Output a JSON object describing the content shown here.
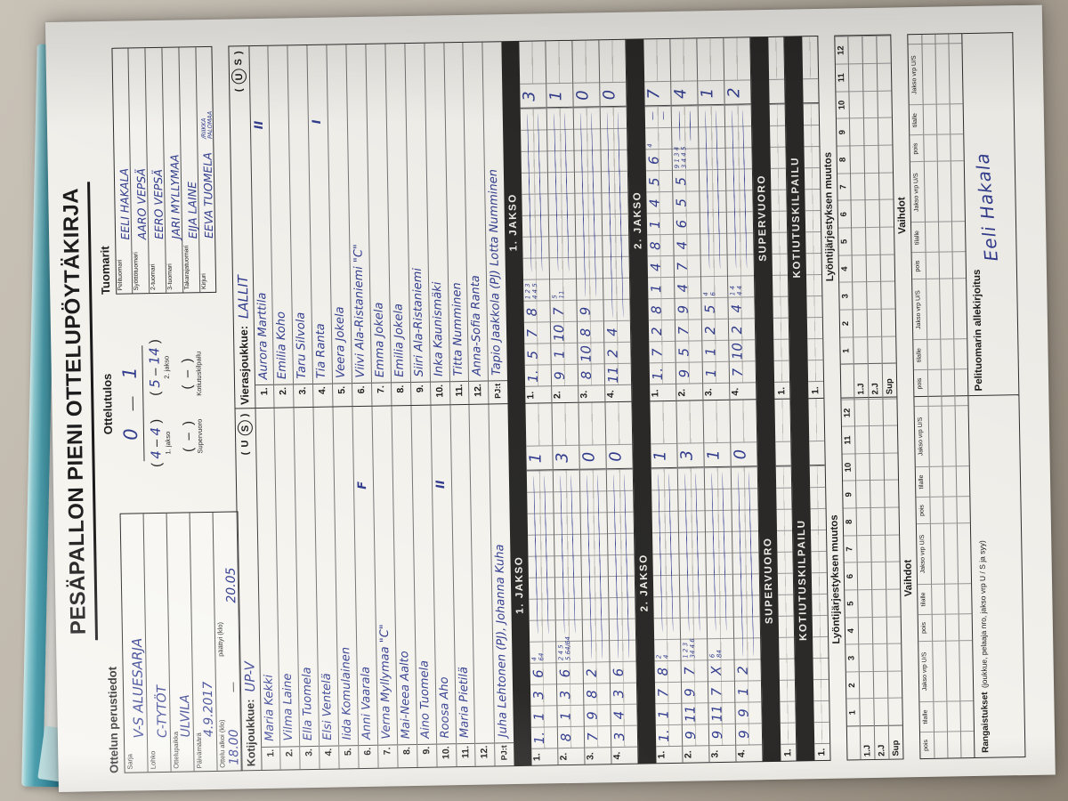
{
  "title": "PESÄPALLON PIENI OTTELUPÖYTÄKIRJA",
  "perustiedot": {
    "header": "Ottelun perustiedot",
    "fields": [
      {
        "label": "Sarja",
        "value": "V-S ALUESARJA"
      },
      {
        "label": "Lohko",
        "value": "C-TYTÖT"
      },
      {
        "label": "Ottelupaikka",
        "value": "ULVILA"
      },
      {
        "label": "Päivämäärä",
        "value": "4.9.2017"
      }
    ],
    "time_row": {
      "label": "Ottelu alkoi (klo)",
      "value": "18.00",
      "dash": "—",
      "label2": "päättyi (klo)",
      "value2": "20.05"
    }
  },
  "ottelutulos": {
    "header": "Ottelutulos",
    "final_home": "0",
    "final_dash": "—",
    "final_away": "1",
    "periods": [
      {
        "home": "4",
        "away": "4",
        "label": "1. jakso"
      },
      {
        "home": "5",
        "away": "14",
        "label": "2. jakso"
      },
      {
        "home": "",
        "away": "",
        "label": "Supervuoro"
      },
      {
        "home": "",
        "away": "",
        "label": "Kotiutuskilpailu"
      }
    ]
  },
  "tuomarit": {
    "header": "Tuomarit",
    "fields": [
      {
        "label": "Pelituomari",
        "value": "EELI HAKALA"
      },
      {
        "label": "Syöttötuomari",
        "value": "AARO VEPSÄ"
      },
      {
        "label": "2-tuomari",
        "value": "EERO VEPSÄ"
      },
      {
        "label": "3-tuomari",
        "value": "JARI MYLLYMAA"
      },
      {
        "label": "Takarajatuomari",
        "value": "EIJA LAINE"
      },
      {
        "label": "Kirjuri",
        "value": "EEVA TUOMELA",
        "extra_top": "/RIIKKA",
        "extra_bottom": "PALOMAA"
      }
    ]
  },
  "roster": {
    "home": {
      "label": "Kotijoukkue:",
      "team": "UP-V",
      "us_left": "U",
      "us_right": "S",
      "circled": "S",
      "players": [
        {
          "num": "1.",
          "name": "Maria Kekki",
          "mark": ""
        },
        {
          "num": "2.",
          "name": "Vilma Laine",
          "mark": ""
        },
        {
          "num": "3.",
          "name": "Ella Tuomela",
          "mark": ""
        },
        {
          "num": "4.",
          "name": "Elsi Ventelä",
          "mark": ""
        },
        {
          "num": "5.",
          "name": "Iida Komulainen",
          "mark": ""
        },
        {
          "num": "6.",
          "name": "Anni Vaarala",
          "mark": "F"
        },
        {
          "num": "7.",
          "name": "Verna Myllymaa \"C\"",
          "mark": ""
        },
        {
          "num": "8.",
          "name": "Mai-Neea Aalto",
          "mark": ""
        },
        {
          "num": "9.",
          "name": "Aino Tuomela",
          "mark": ""
        },
        {
          "num": "10.",
          "name": "Roosa Aho",
          "mark": "II"
        },
        {
          "num": "11.",
          "name": "Maria Pietilä",
          "mark": ""
        },
        {
          "num": "12.",
          "name": "",
          "mark": ""
        }
      ],
      "pjt_label": "PJ:t",
      "pjt": "Juha Lehtonen (PJ), Johanna Kuha"
    },
    "away": {
      "label": "Vierasjoukkue:",
      "team": "LALLIT",
      "us_left": "U",
      "us_right": "S",
      "circled": "U",
      "players": [
        {
          "num": "1.",
          "name": "Aurora Marttila",
          "mark": "II"
        },
        {
          "num": "2.",
          "name": "Emilia Koho",
          "mark": ""
        },
        {
          "num": "3.",
          "name": "Taru Silvola",
          "mark": ""
        },
        {
          "num": "4.",
          "name": "Tia Ranta",
          "mark": "I"
        },
        {
          "num": "5.",
          "name": "Veera Jokela",
          "mark": ""
        },
        {
          "num": "6.",
          "name": "Viivi Ala-Ristaniemi \"C\"",
          "mark": ""
        },
        {
          "num": "7.",
          "name": "Emma Jokela",
          "mark": ""
        },
        {
          "num": "8.",
          "name": "Emilia Jokela",
          "mark": ""
        },
        {
          "num": "9.",
          "name": "Siiri Ala-Ristaniemi",
          "mark": ""
        },
        {
          "num": "10.",
          "name": "Inka Kaunismäki",
          "mark": ""
        },
        {
          "num": "11.",
          "name": "Titta Numminen",
          "mark": ""
        },
        {
          "num": "12.",
          "name": "Anna-Sofia Ranta",
          "mark": ""
        }
      ],
      "pjt_label": "PJ:t",
      "pjt": "Tapio Jaakkola (PJ) Lotta Numminen"
    }
  },
  "jakso1": {
    "title": "1. JAKSO",
    "home": [
      {
        "label": "1.",
        "cells": [
          "1.",
          "1",
          "3",
          "6"
        ],
        "ann_top": "4",
        "ann_bot": "64",
        "total": "1"
      },
      {
        "label": "2.",
        "cells": [
          "8",
          "1",
          "3",
          "6"
        ],
        "ann_top": "2 4 5",
        "ann_bot": "5 64/64",
        "total": "3"
      },
      {
        "label": "3.",
        "cells": [
          "7",
          "9",
          "8",
          "2"
        ],
        "ann_top": "",
        "ann_bot": "",
        "total": "0"
      },
      {
        "label": "4.",
        "cells": [
          "3",
          "4",
          "3",
          "6"
        ],
        "ann_top": "",
        "ann_bot": "",
        "total": "0"
      }
    ],
    "away": [
      {
        "label": "1.",
        "cells": [
          "1.",
          "5",
          "7",
          "8"
        ],
        "ann_top": "1 2 3",
        "ann_bot": "4 4 5",
        "total": "3"
      },
      {
        "label": "2.",
        "cells": [
          "9",
          "1",
          "10",
          "7"
        ],
        "ann_top": "5",
        "ann_bot": "11",
        "total": "1"
      },
      {
        "label": "3.",
        "cells": [
          "8",
          "10",
          "8",
          "9"
        ],
        "ann_top": "",
        "ann_bot": "",
        "total": "0"
      },
      {
        "label": "4.",
        "cells": [
          "11",
          "2",
          "4"
        ],
        "ann_top": "",
        "ann_bot": "",
        "total": "0"
      }
    ]
  },
  "jakso2": {
    "title": "2. JAKSO",
    "home": [
      {
        "label": "1.",
        "cells": [
          "1.",
          "1",
          "7",
          "8"
        ],
        "ann_top": "2",
        "ann_bot": "4",
        "total": "1"
      },
      {
        "label": "2.",
        "cells": [
          "9",
          "11",
          "9",
          "7"
        ],
        "ann_top": "1 2 3",
        "ann_bot": "34 4 6",
        "total": "3"
      },
      {
        "label": "3.",
        "cells": [
          "9",
          "11",
          "7",
          "X"
        ],
        "ann_top": "6",
        "ann_bot": "84",
        "total": "1"
      },
      {
        "label": "4.",
        "cells": [
          "9",
          "9",
          "1",
          "2"
        ],
        "ann_top": "",
        "ann_bot": "",
        "total": "0"
      }
    ],
    "away": [
      {
        "label": "1.",
        "cells": [
          "1.",
          "7",
          "2",
          "8",
          "1",
          "4",
          "8",
          "1",
          "4",
          "5",
          "6"
        ],
        "ann_top": "4",
        "ann_bot": "",
        "total": "7"
      },
      {
        "label": "2.",
        "cells": [
          "9",
          "5",
          "7",
          "9",
          "4",
          "7",
          "4",
          "6",
          "5",
          "5"
        ],
        "ann_top": "9 1 3 4",
        "ann_bot": "3 4 4 5",
        "total": "4"
      },
      {
        "label": "3.",
        "cells": [
          "1",
          "1",
          "2",
          "5"
        ],
        "ann_top": "4",
        "ann_bot": "6",
        "total": "1"
      },
      {
        "label": "4.",
        "cells": [
          "7",
          "10",
          "2",
          "4"
        ],
        "ann_top": "1 4",
        "ann_bot": "4 4",
        "total": "2"
      }
    ]
  },
  "supervuoro": {
    "title": "SUPERVUORO",
    "row_label": "1."
  },
  "kotiutuskilpailu": {
    "title": "KOTIUTUSKILPAILU",
    "row_label": "1."
  },
  "muutos": {
    "header": "Lyöntijärjestyksen muutos",
    "cols": [
      "1",
      "2",
      "3",
      "4",
      "5",
      "6",
      "7",
      "8",
      "9",
      "10",
      "11",
      "12"
    ],
    "row_labels": [
      "1.J",
      "2.J",
      "Sup"
    ]
  },
  "vaihdot": {
    "header": "Vaihdot",
    "col_labels": [
      "pois",
      "tilalle",
      "Jakso vrp U/S"
    ],
    "groups": 3,
    "rows": 3
  },
  "rangaistukset": {
    "label": "Rangaistukset",
    "detail": "(joukkue, pelaaja nro, jakso vrp U / S ja syy)"
  },
  "allekirjoitus": {
    "label": "Pelituomarin allekirjoitus",
    "signature": "Eeli Hakala"
  }
}
